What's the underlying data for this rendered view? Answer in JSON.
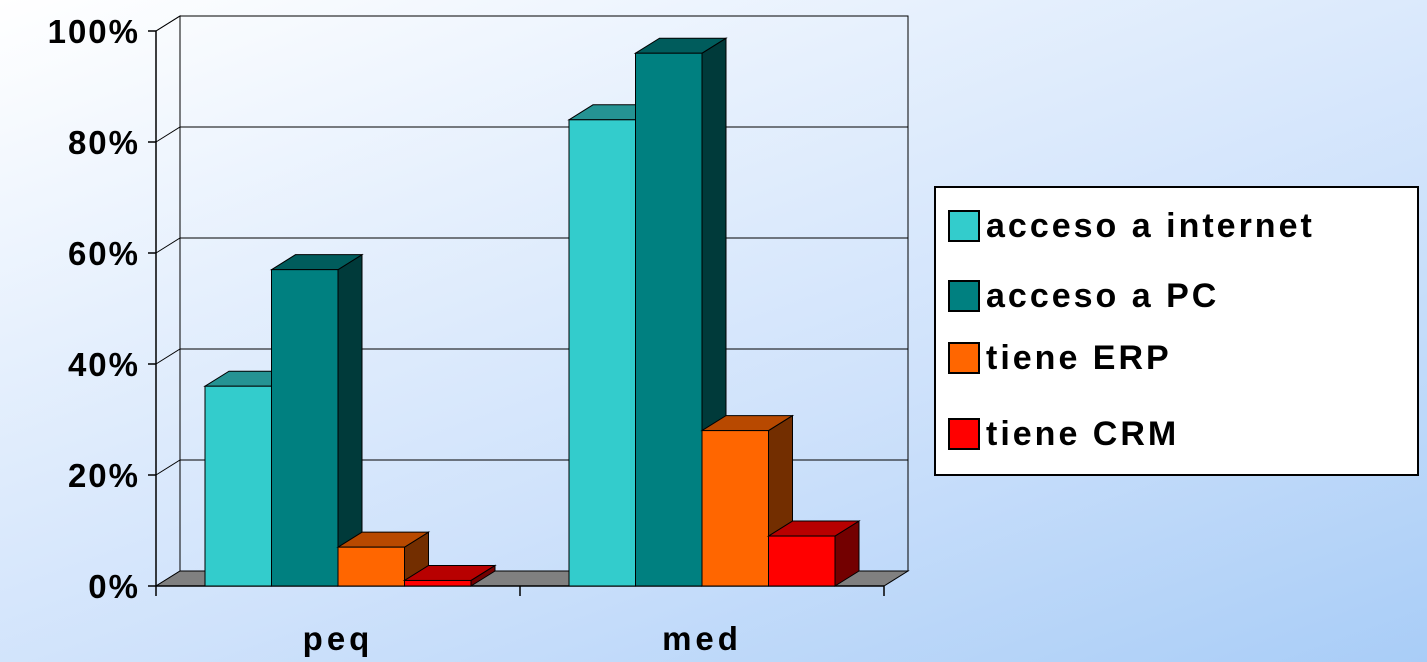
{
  "chart_data": {
    "type": "bar",
    "three_d": true,
    "categories": [
      "peq",
      "med"
    ],
    "series": [
      {
        "name": "acceso a internet",
        "values": [
          36,
          84
        ],
        "color": "#33CCCC"
      },
      {
        "name": "acceso a PC",
        "values": [
          57,
          96
        ],
        "color": "#008080"
      },
      {
        "name": "tiene ERP",
        "values": [
          7,
          28
        ],
        "color": "#FF6600"
      },
      {
        "name": "tiene CRM",
        "values": [
          1,
          9
        ],
        "color": "#FF0000"
      }
    ],
    "y_ticks": [
      "0%",
      "20%",
      "40%",
      "60%",
      "80%",
      "100%"
    ],
    "ylim": [
      0,
      100
    ],
    "y_unit": "%",
    "grid": true,
    "legend_position": "right",
    "title": "",
    "xlabel": "",
    "ylabel": ""
  }
}
